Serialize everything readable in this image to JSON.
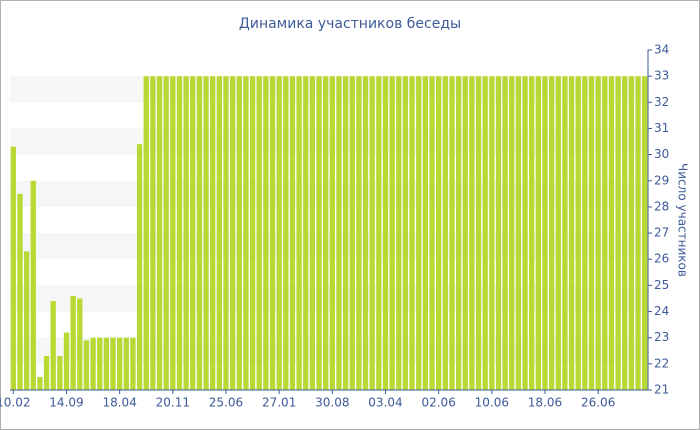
{
  "chart_data": {
    "type": "bar",
    "title": "Динамика участников беседы",
    "y_label": "Число участников",
    "color": "#b8d934",
    "categories": [
      "10.02",
      null,
      null,
      null,
      null,
      null,
      null,
      null,
      "14.09",
      null,
      null,
      null,
      null,
      null,
      null,
      null,
      "18.04",
      null,
      null,
      null,
      null,
      null,
      null,
      null,
      "20.11",
      null,
      null,
      null,
      null,
      null,
      null,
      null,
      "25.06",
      null,
      null,
      null,
      null,
      null,
      null,
      null,
      "27.01",
      null,
      null,
      null,
      null,
      null,
      null,
      null,
      "30.08",
      null,
      null,
      null,
      null,
      null,
      null,
      null,
      "03.04",
      null,
      null,
      null,
      null,
      null,
      null,
      null,
      "02.06",
      null,
      null,
      null,
      null,
      null,
      null,
      null,
      "10.06",
      null,
      null,
      null,
      null,
      null,
      null,
      null,
      "18.06",
      null,
      null,
      null,
      null,
      null,
      null,
      null,
      "26.06",
      null,
      null,
      null,
      null,
      null,
      null,
      null
    ],
    "values": [
      30.3,
      28.5,
      26.3,
      29.0,
      21.5,
      22.3,
      24.4,
      22.3,
      23.2,
      24.6,
      24.5,
      22.9,
      23,
      23,
      23,
      23,
      23,
      23,
      23,
      30.4,
      33,
      33,
      33,
      33,
      33,
      33,
      33,
      33,
      33,
      33,
      33,
      33,
      33,
      33,
      33,
      33,
      33,
      33,
      33,
      33,
      33,
      33,
      33,
      33,
      33,
      33,
      33,
      33,
      33,
      33,
      33,
      33,
      33,
      33,
      33,
      33,
      33,
      33,
      33,
      33,
      33,
      33,
      33,
      33,
      33,
      33,
      33,
      33,
      33,
      33,
      33,
      33,
      33,
      33,
      33,
      33,
      33,
      33,
      33,
      33,
      33,
      33,
      33,
      33,
      33,
      33,
      33,
      33,
      33,
      33,
      33,
      33,
      33,
      33,
      33,
      33
    ],
    "ylim": [
      21,
      34
    ],
    "yticks": [
      21,
      22,
      23,
      24,
      25,
      26,
      27,
      28,
      29,
      30,
      31,
      32,
      33,
      34
    ],
    "grid": "bands"
  }
}
